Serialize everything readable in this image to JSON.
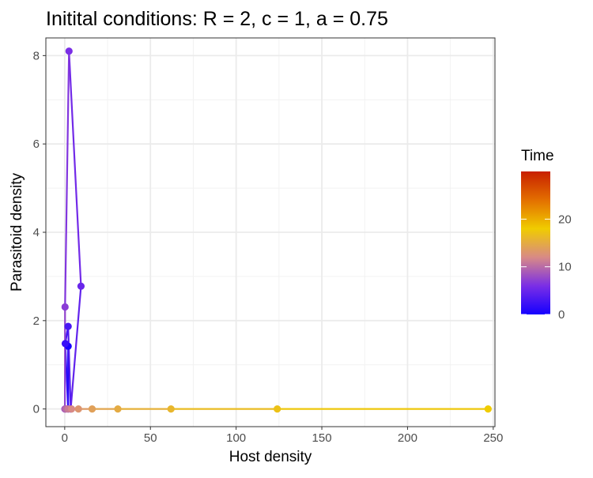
{
  "chart_data": {
    "type": "line",
    "title": "Initital conditions: R = 2, c = 1, a = 0.75",
    "xlabel": "Host density",
    "ylabel": "Parasitoid density",
    "xlim": [
      -11,
      251
    ],
    "ylim": [
      -0.4,
      8.4
    ],
    "xticks": [
      0,
      50,
      100,
      150,
      200,
      250
    ],
    "yticks": [
      0,
      2,
      4,
      6,
      8
    ],
    "grid": true,
    "legend": {
      "title": "Time",
      "position": "right",
      "type": "colorbar",
      "range": [
        0,
        30
      ],
      "ticks": [
        0,
        10,
        20
      ],
      "colors": [
        "#1500ff",
        "#7a2ee6",
        "#d88a86",
        "#f0cc00",
        "#e36f00",
        "#c82000"
      ]
    },
    "series": [
      {
        "x": [
          2,
          2,
          0.3,
          2,
          3.5,
          9.5,
          2.5,
          0.2,
          0.1,
          0.3,
          0.8,
          2,
          4,
          8,
          16,
          31,
          62,
          124,
          247
        ],
        "y": [
          1.42,
          0,
          1.48,
          1.87,
          0,
          2.78,
          8.1,
          2.31,
          0,
          0,
          0,
          0,
          0,
          0,
          0,
          0,
          0,
          0,
          0
        ],
        "time": [
          0,
          1,
          2,
          3,
          4,
          5,
          6,
          7,
          8,
          9,
          10,
          11,
          12,
          13,
          14,
          15,
          16,
          17,
          18
        ]
      }
    ]
  }
}
